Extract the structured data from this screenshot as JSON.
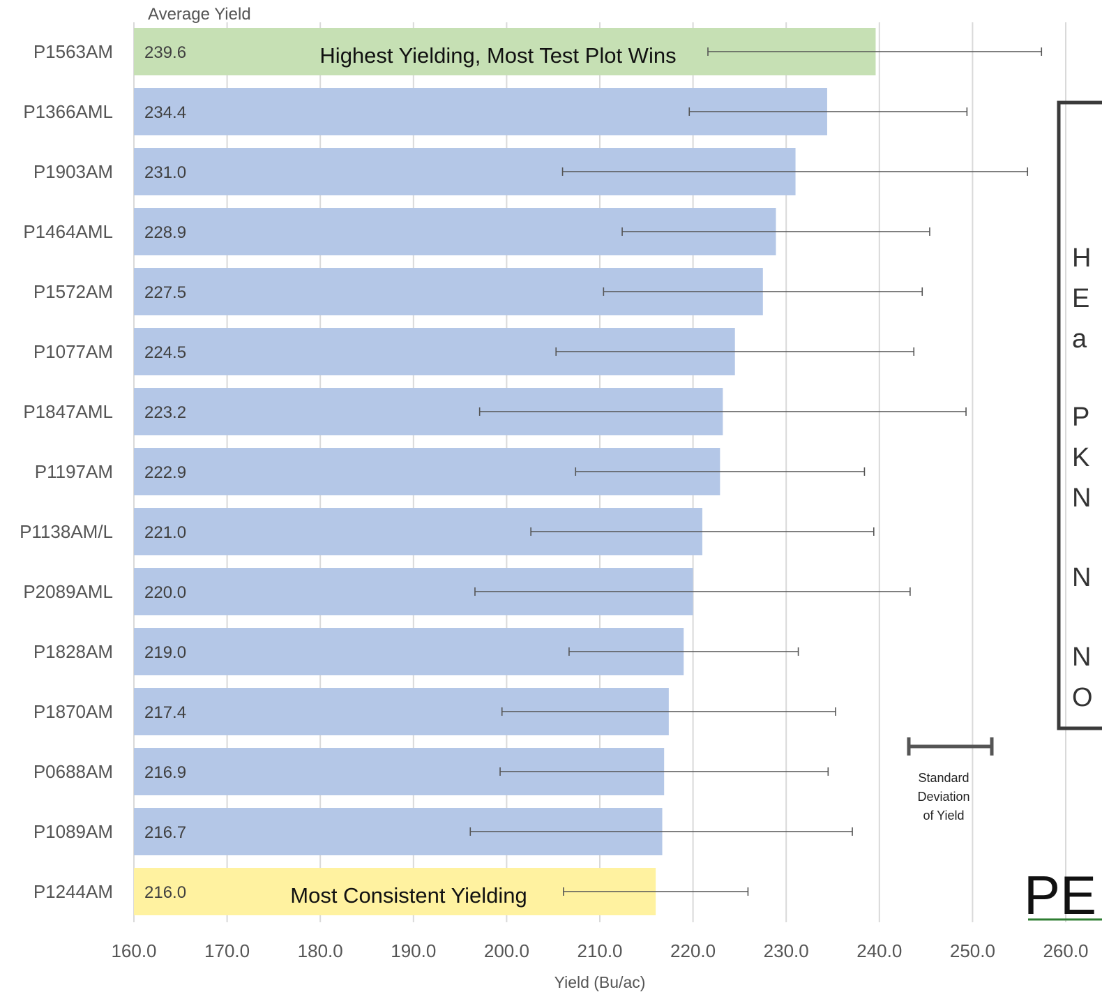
{
  "chart_data": {
    "type": "bar",
    "orientation": "horizontal",
    "title": "Average Yield",
    "xlabel": "Yield (Bu/ac)",
    "xlim": [
      160,
      260
    ],
    "x_ticks": [
      "160.0",
      "170.0",
      "180.0",
      "190.0",
      "200.0",
      "210.0",
      "220.0",
      "230.0",
      "240.0",
      "250.0",
      "260.0"
    ],
    "grid": true,
    "categories": [
      "P1563AM",
      "P1366AML",
      "P1903AM",
      "P1464AML",
      "P1572AM",
      "P1077AM",
      "P1847AML",
      "P1197AM",
      "P1138AM/L",
      "P2089AML",
      "P1828AM",
      "P1870AM",
      "P0688AM",
      "P1089AM",
      "P1244AM"
    ],
    "values": [
      239.6,
      234.4,
      231.0,
      228.9,
      227.5,
      224.5,
      223.2,
      222.9,
      221.0,
      220.0,
      219.0,
      217.4,
      216.9,
      216.7,
      216.0
    ],
    "value_labels": [
      "239.6",
      "234.4",
      "231.0",
      "228.9",
      "227.5",
      "224.5",
      "223.2",
      "222.9",
      "221.0",
      "220.0",
      "219.0",
      "217.4",
      "216.9",
      "216.7",
      "216.0"
    ],
    "error_bars": [
      [
        221.6,
        257.4
      ],
      [
        219.6,
        249.4
      ],
      [
        206.0,
        255.9
      ],
      [
        212.4,
        245.4
      ],
      [
        210.4,
        244.6
      ],
      [
        205.3,
        243.7
      ],
      [
        197.1,
        249.3
      ],
      [
        207.4,
        238.4
      ],
      [
        202.6,
        239.4
      ],
      [
        196.6,
        243.3
      ],
      [
        206.7,
        231.3
      ],
      [
        199.5,
        235.3
      ],
      [
        199.3,
        234.5
      ],
      [
        196.1,
        237.1
      ],
      [
        206.1,
        225.9
      ]
    ],
    "highlights": [
      {
        "category": "P1563AM",
        "color": "#c6e0b4",
        "note": "Highest Yielding, Most Test Plot Wins"
      },
      {
        "category": "P1244AM",
        "color": "#fff2a0",
        "note": "Most Consistent Yielding"
      }
    ],
    "bar_color": "#b4c7e7",
    "legend": {
      "label": "Standard Deviation of Yield",
      "lines": [
        "Standard",
        "Deviation",
        "of Yield"
      ],
      "placement": "bottom-right"
    }
  },
  "side_panel": {
    "lines": [
      "H",
      "E",
      "a",
      "P",
      "K",
      "N",
      "N",
      "N",
      "O"
    ]
  },
  "logo": {
    "text": "PE"
  }
}
